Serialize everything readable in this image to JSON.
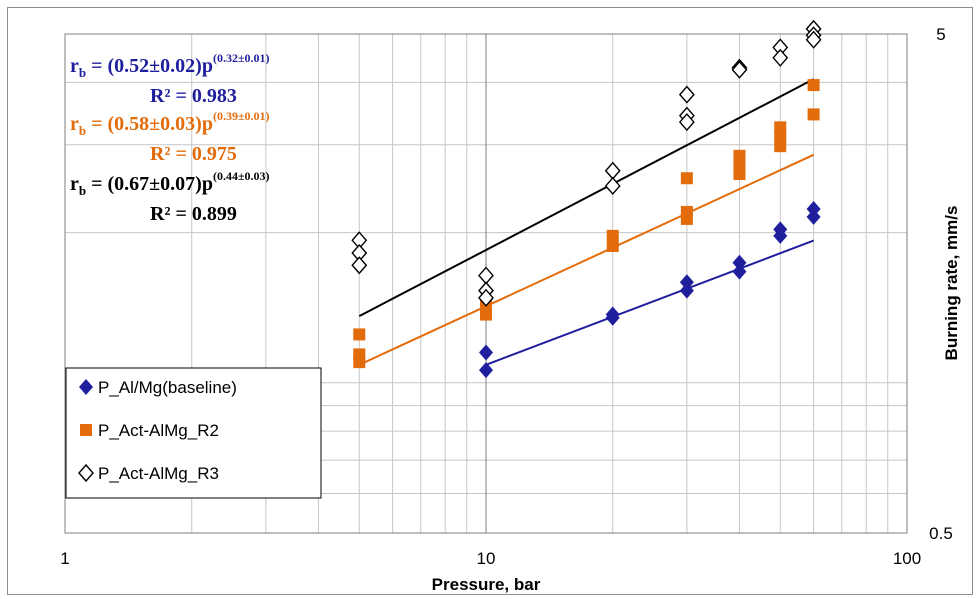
{
  "chart_data": {
    "type": "scatter",
    "x_scale": "log",
    "y_scale": "log",
    "xlim": [
      1,
      100
    ],
    "ylim": [
      0.5,
      5
    ],
    "x_ticks": [
      "1",
      "10",
      "100"
    ],
    "y_ticks": [
      "0.5",
      "5"
    ],
    "xlabel": "Pressure, bar",
    "ylabel": "Burning rate, mm/s",
    "grid": true,
    "legend_position": "bottom-left",
    "series": [
      {
        "name": "P_Al/Mg(baseline)",
        "marker": "diamond-filled",
        "color": "#1f1f9e",
        "points": [
          [
            10,
            1.15
          ],
          [
            10,
            1.06
          ],
          [
            20,
            1.37
          ],
          [
            20,
            1.35
          ],
          [
            30,
            1.59
          ],
          [
            30,
            1.53
          ],
          [
            40,
            1.74
          ],
          [
            40,
            1.67
          ],
          [
            50,
            2.03
          ],
          [
            50,
            1.97
          ],
          [
            60,
            2.23
          ],
          [
            60,
            2.15
          ]
        ],
        "fit": {
          "a": 0.52,
          "b": 0.32,
          "x_range": [
            10,
            60
          ]
        }
      },
      {
        "name": "P_Act-AlMg_R2",
        "marker": "square-filled",
        "color": "#e36c0a",
        "points": [
          [
            5,
            1.25
          ],
          [
            5,
            1.14
          ],
          [
            5,
            1.1
          ],
          [
            10,
            1.43
          ],
          [
            10,
            1.37
          ],
          [
            20,
            1.97
          ],
          [
            20,
            1.88
          ],
          [
            30,
            2.57
          ],
          [
            30,
            2.2
          ],
          [
            30,
            2.13
          ],
          [
            40,
            2.85
          ],
          [
            40,
            2.72
          ],
          [
            40,
            2.62
          ],
          [
            50,
            3.25
          ],
          [
            50,
            3.12
          ],
          [
            50,
            2.98
          ],
          [
            60,
            3.95
          ],
          [
            60,
            3.45
          ]
        ],
        "fit": {
          "a": 0.58,
          "b": 0.39,
          "x_range": [
            5,
            60
          ]
        }
      },
      {
        "name": "P_Act-AlMg_R3",
        "marker": "diamond-open",
        "color": "#000000",
        "points": [
          [
            5,
            1.93
          ],
          [
            5,
            1.82
          ],
          [
            5,
            1.72
          ],
          [
            10,
            1.64
          ],
          [
            10,
            1.53
          ],
          [
            10,
            1.48
          ],
          [
            20,
            2.66
          ],
          [
            20,
            2.48
          ],
          [
            30,
            3.78
          ],
          [
            30,
            3.43
          ],
          [
            30,
            3.33
          ],
          [
            40,
            4.28
          ],
          [
            40,
            4.24
          ],
          [
            50,
            4.7
          ],
          [
            50,
            4.48
          ],
          [
            60,
            5.12
          ],
          [
            60,
            4.97
          ],
          [
            60,
            4.87
          ]
        ],
        "fit": {
          "a": 0.67,
          "b": 0.44,
          "x_range": [
            5,
            60
          ]
        }
      }
    ],
    "equations": [
      {
        "base": "r",
        "sub": "b",
        "mid": " = (0.52±0.02)p",
        "sup": "(0.32±0.01)",
        "r2": "R² = 0.983",
        "color": "#1f1f9e"
      },
      {
        "base": "r",
        "sub": "b",
        "mid": " = (0.58±0.03)p",
        "sup": "(0.39±0.01)",
        "r2": "R² = 0.975",
        "color": "#e36c0a"
      },
      {
        "base": "r",
        "sub": "b",
        "mid": " = (0.67±0.07)p",
        "sup": "(0.44±0.03)",
        "r2": "R² = 0.899",
        "color": "#000000"
      }
    ]
  }
}
